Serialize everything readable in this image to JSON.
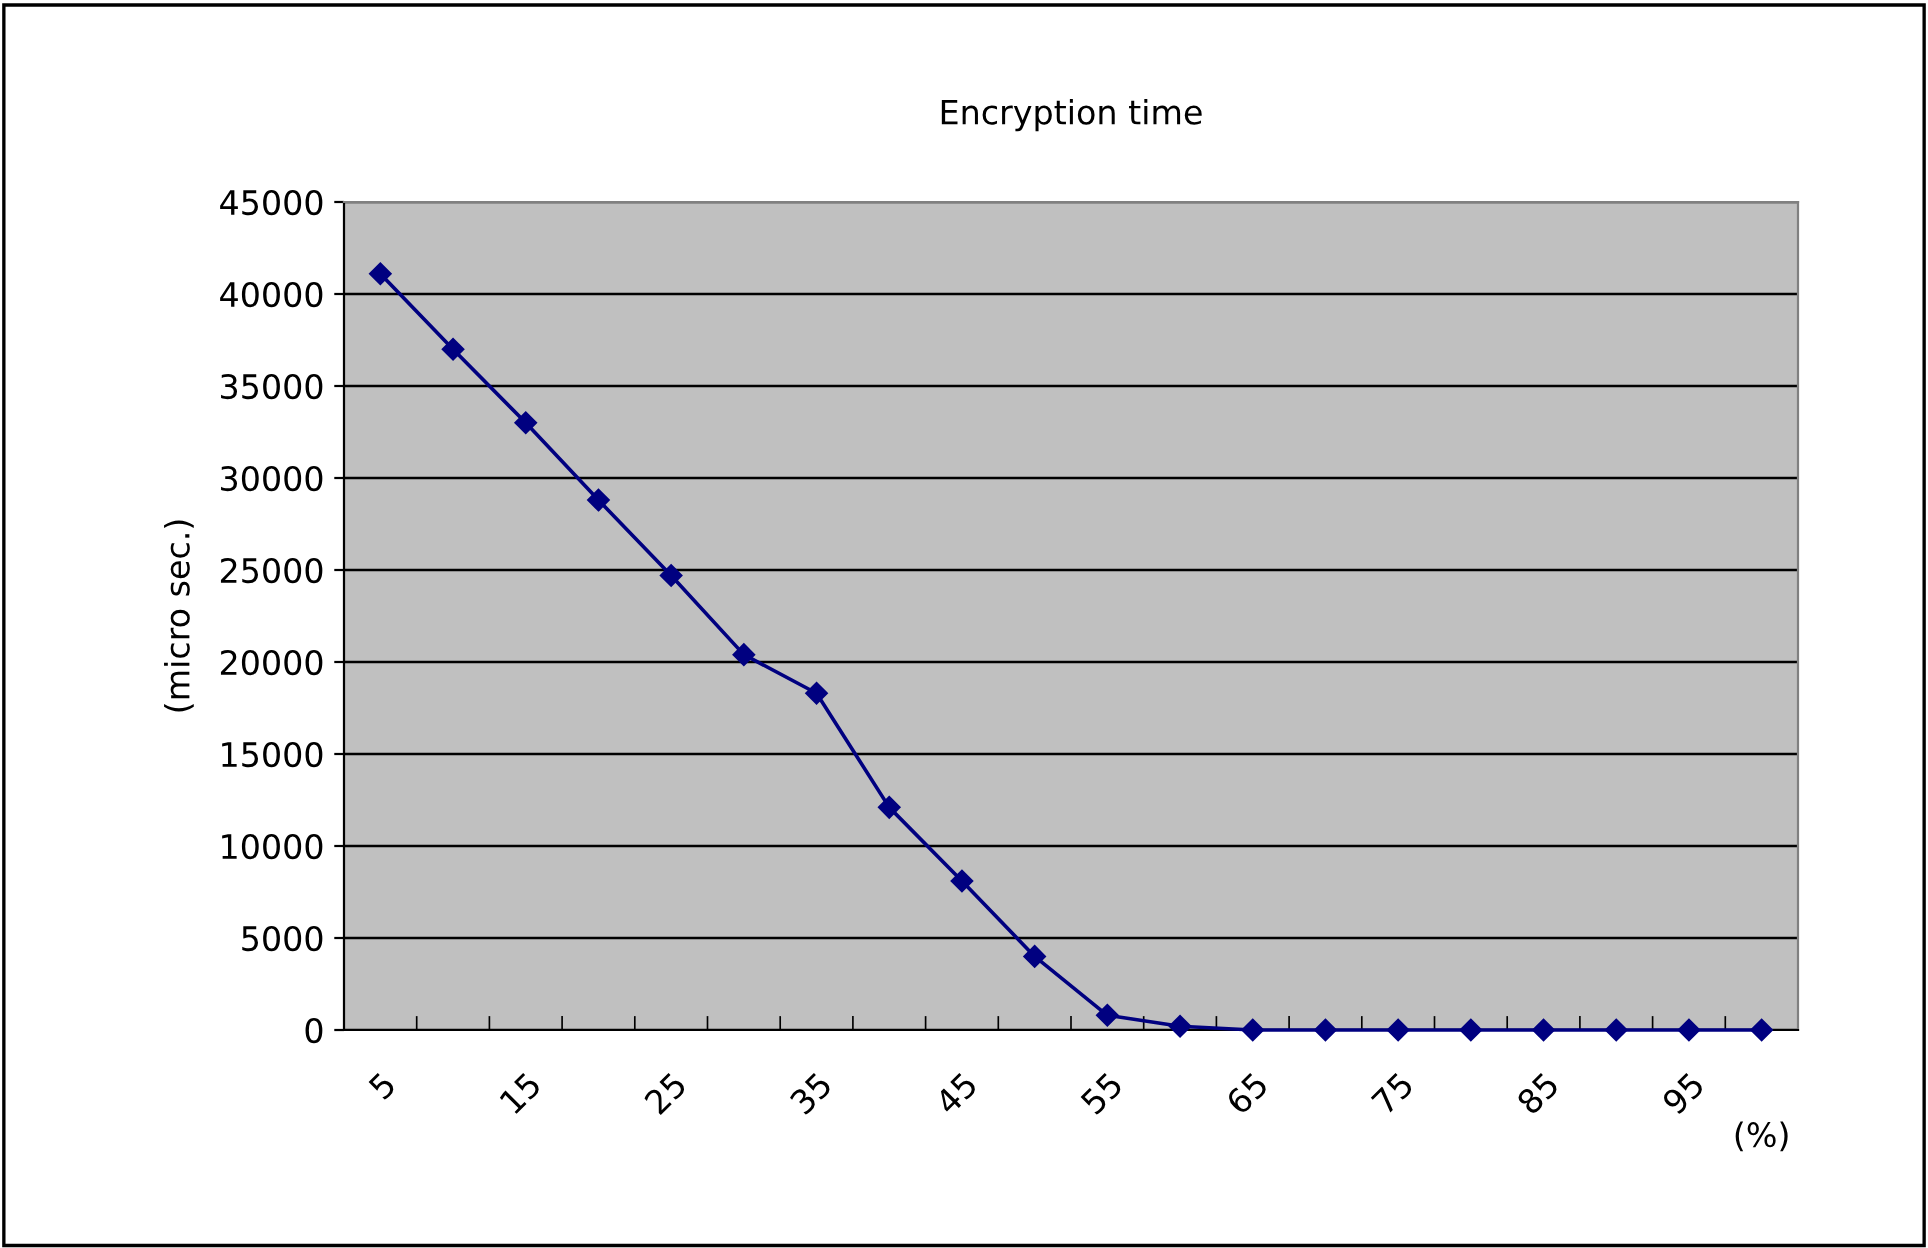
{
  "chart_data": {
    "type": "line",
    "title": "Encryption time",
    "ylabel": "(micro sec.)",
    "xlabel": "(%)",
    "categories": [
      "5",
      null,
      "15",
      null,
      "25",
      null,
      "35",
      null,
      "45",
      null,
      "55",
      null,
      "65",
      null,
      "75",
      null,
      "85",
      null,
      "95",
      null
    ],
    "series": [
      {
        "color": "#000080",
        "values": [
          41100,
          37000,
          33000,
          28800,
          24700,
          20400,
          18300,
          12100,
          8100,
          4000,
          800,
          200,
          0,
          0,
          0,
          0,
          0,
          0,
          0,
          0
        ]
      }
    ],
    "ylim": [
      0,
      45000
    ],
    "yticks": [
      0,
      5000,
      10000,
      15000,
      20000,
      25000,
      30000,
      35000,
      40000,
      45000
    ],
    "grid": "y",
    "marker": "diamond",
    "line_style": "solid",
    "legend": false
  }
}
